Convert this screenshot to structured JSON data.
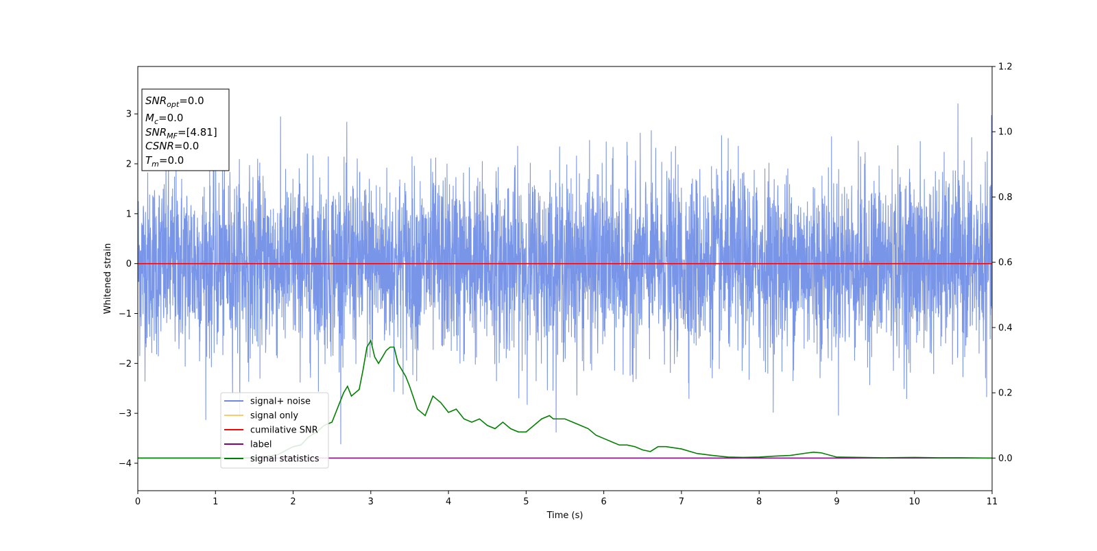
{
  "chart_data": {
    "type": "line",
    "xlabel": "Time (s)",
    "ylabel": "Whitened strain",
    "xlim": [
      0,
      11
    ],
    "ylim_left": [
      -4.55,
      3.95
    ],
    "ylim_right": [
      -0.1,
      1.2
    ],
    "x_ticks": [
      0,
      1,
      2,
      3,
      4,
      5,
      6,
      7,
      8,
      9,
      10,
      11
    ],
    "y_ticks_left": [
      -4,
      -3,
      -2,
      -1,
      0,
      1,
      2,
      3
    ],
    "y_ticks_right": [
      0.0,
      0.2,
      0.4,
      0.6,
      0.8,
      1.0,
      1.2
    ],
    "y_ticks_right_labels": [
      "0.0",
      "0.2",
      "0.4",
      "0.6",
      "0.8",
      "1.0",
      "1.2"
    ],
    "legend_position": "lower-left",
    "series": [
      {
        "name": "signal+ noise",
        "axis": "left",
        "color": "#6a8ae6",
        "description_kind": "noise",
        "noise_std": 0.9,
        "x_range": [
          0,
          11
        ],
        "range": [
          -4.15,
          3.6
        ]
      },
      {
        "name": "signal only",
        "axis": "left",
        "color": "#ffc966",
        "x": [
          0,
          11
        ],
        "y": [
          0,
          0
        ]
      },
      {
        "name": "cumilative SNR",
        "axis": "left",
        "color": "#ff0000",
        "x": [
          0,
          11
        ],
        "y": [
          0,
          0
        ]
      },
      {
        "name": "label",
        "axis": "right",
        "color": "#800080",
        "x": [
          0,
          11
        ],
        "y": [
          0,
          0
        ]
      },
      {
        "name": "signal statistics",
        "axis": "right",
        "color": "#008000",
        "x": [
          0,
          0.5,
          1.0,
          1.5,
          1.8,
          2.0,
          2.1,
          2.2,
          2.3,
          2.4,
          2.5,
          2.6,
          2.65,
          2.7,
          2.75,
          2.8,
          2.85,
          2.9,
          2.95,
          3.0,
          3.05,
          3.1,
          3.15,
          3.2,
          3.25,
          3.3,
          3.35,
          3.45,
          3.5,
          3.6,
          3.7,
          3.8,
          3.85,
          3.9,
          4.0,
          4.1,
          4.2,
          4.3,
          4.4,
          4.5,
          4.6,
          4.7,
          4.8,
          4.9,
          5.0,
          5.1,
          5.2,
          5.3,
          5.35,
          5.4,
          5.5,
          5.6,
          5.7,
          5.8,
          5.9,
          6.0,
          6.1,
          6.2,
          6.3,
          6.4,
          6.5,
          6.6,
          6.7,
          6.8,
          7.0,
          7.2,
          7.4,
          7.6,
          7.8,
          8.0,
          8.2,
          8.4,
          8.6,
          8.7,
          8.8,
          9.0,
          9.3,
          9.6,
          10.0,
          10.3,
          10.6,
          11.0
        ],
        "y": [
          0.0,
          0.0,
          0.0,
          0.001,
          0.01,
          0.035,
          0.04,
          0.065,
          0.08,
          0.1,
          0.11,
          0.17,
          0.2,
          0.22,
          0.19,
          0.2,
          0.21,
          0.27,
          0.34,
          0.36,
          0.31,
          0.29,
          0.31,
          0.33,
          0.34,
          0.34,
          0.29,
          0.25,
          0.22,
          0.15,
          0.13,
          0.19,
          0.18,
          0.17,
          0.14,
          0.15,
          0.12,
          0.11,
          0.12,
          0.1,
          0.09,
          0.11,
          0.09,
          0.08,
          0.08,
          0.1,
          0.12,
          0.13,
          0.12,
          0.12,
          0.12,
          0.11,
          0.1,
          0.09,
          0.07,
          0.06,
          0.05,
          0.04,
          0.04,
          0.035,
          0.025,
          0.02,
          0.035,
          0.035,
          0.028,
          0.014,
          0.008,
          0.003,
          0.002,
          0.003,
          0.006,
          0.008,
          0.015,
          0.018,
          0.016,
          0.003,
          0.002,
          0.001,
          0.002,
          0.001,
          0.001,
          0.0
        ]
      }
    ]
  },
  "info_box": {
    "lines": [
      {
        "main": "SNR",
        "sub": "opt",
        "value": "=0.0"
      },
      {
        "main": "M",
        "sub": "c",
        "value": "=0.0"
      },
      {
        "main": "SNR",
        "sub": "MF",
        "value": "=[4.81]"
      },
      {
        "main": "CSNR",
        "sub": "",
        "value": "=0.0"
      },
      {
        "main": "T",
        "sub": "m",
        "value": "=0.0"
      }
    ]
  }
}
